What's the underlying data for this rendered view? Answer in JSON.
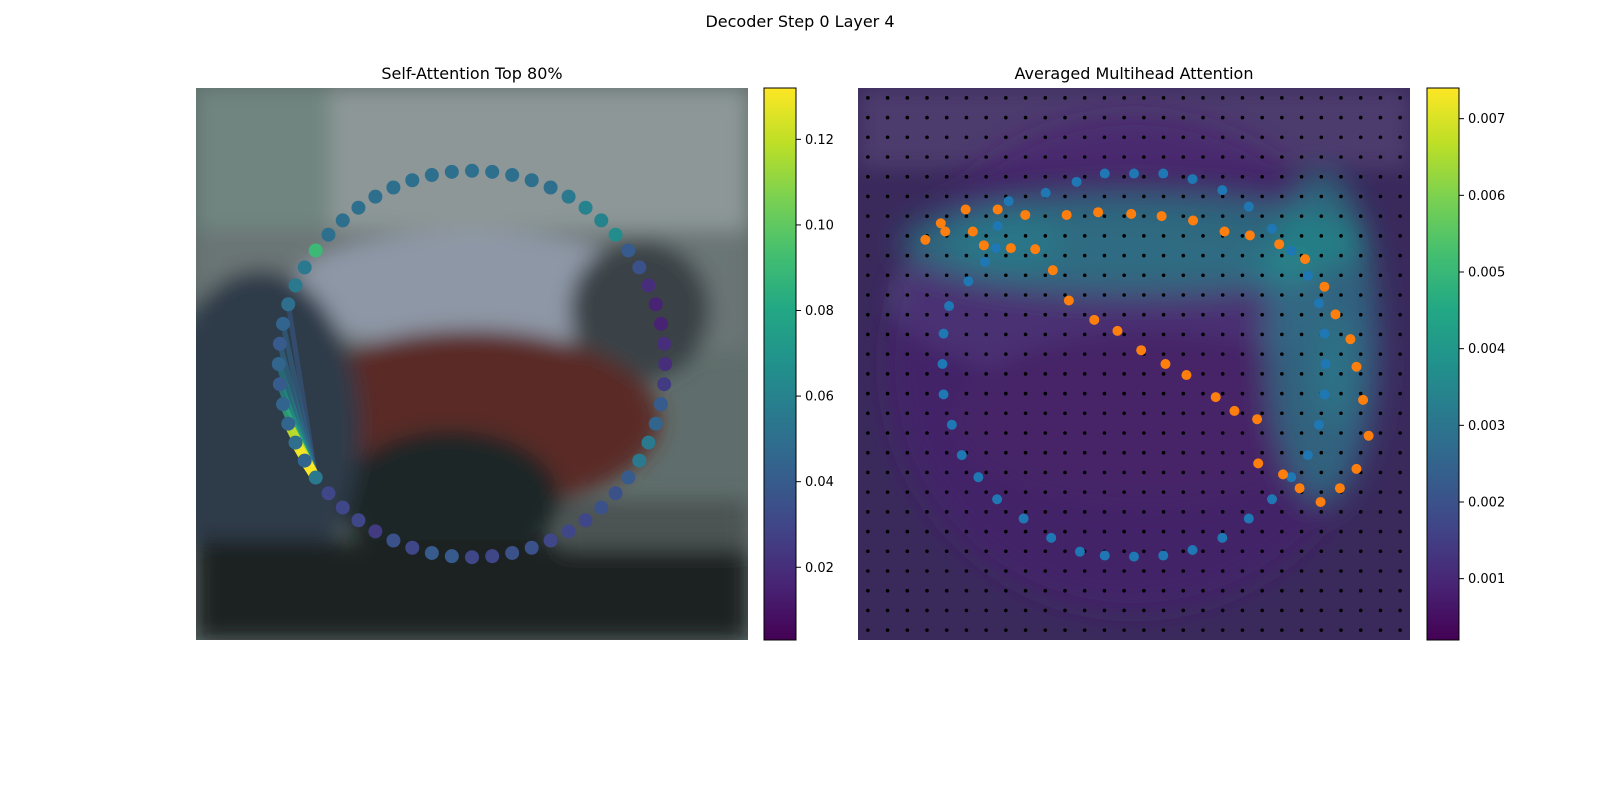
{
  "figure": {
    "suptitle": "Decoder Step 0 Layer 4"
  },
  "chart_data": [
    {
      "type": "scatter",
      "title": "Self-Attention Top 80%",
      "colormap": "viridis",
      "colorbar": {
        "vmin": 0.003,
        "vmax": 0.132,
        "ticks": [
          "0.02",
          "0.04",
          "0.06",
          "0.08",
          "0.10",
          "0.12"
        ],
        "tick_values": [
          0.02,
          0.04,
          0.06,
          0.08,
          0.1,
          0.12
        ]
      },
      "ring_center": [
        0.5,
        0.5
      ],
      "ring_radius": 0.35,
      "query_point": 39,
      "points": [
        {
          "angle": 90,
          "attention": 0.05
        },
        {
          "angle": 84,
          "attention": 0.05
        },
        {
          "angle": 78,
          "attention": 0.05
        },
        {
          "angle": 72,
          "attention": 0.05
        },
        {
          "angle": 66,
          "attention": 0.05
        },
        {
          "angle": 60,
          "attention": 0.055
        },
        {
          "angle": 54,
          "attention": 0.06
        },
        {
          "angle": 48,
          "attention": 0.06
        },
        {
          "angle": 42,
          "attention": 0.065
        },
        {
          "angle": 36,
          "attention": 0.04
        },
        {
          "angle": 30,
          "attention": 0.035
        },
        {
          "angle": 24,
          "attention": 0.02
        },
        {
          "angle": 18,
          "attention": 0.015
        },
        {
          "angle": 12,
          "attention": 0.015
        },
        {
          "angle": 6,
          "attention": 0.02
        },
        {
          "angle": 0,
          "attention": 0.02
        },
        {
          "angle": -6,
          "attention": 0.025
        },
        {
          "angle": -12,
          "attention": 0.04
        },
        {
          "angle": -18,
          "attention": 0.045
        },
        {
          "angle": -24,
          "attention": 0.055
        },
        {
          "angle": -30,
          "attention": 0.055
        },
        {
          "angle": -36,
          "attention": 0.04
        },
        {
          "angle": -42,
          "attention": 0.035
        },
        {
          "angle": -48,
          "attention": 0.035
        },
        {
          "angle": -54,
          "attention": 0.03
        },
        {
          "angle": -60,
          "attention": 0.03
        },
        {
          "angle": -66,
          "attention": 0.03
        },
        {
          "angle": -72,
          "attention": 0.035
        },
        {
          "angle": -78,
          "attention": 0.035
        },
        {
          "angle": -84,
          "attention": 0.03
        },
        {
          "angle": -90,
          "attention": 0.03
        },
        {
          "angle": -96,
          "attention": 0.04
        },
        {
          "angle": -102,
          "attention": 0.04
        },
        {
          "angle": -108,
          "attention": 0.03
        },
        {
          "angle": -114,
          "attention": 0.035
        },
        {
          "angle": -120,
          "attention": 0.025
        },
        {
          "angle": -126,
          "attention": 0.03
        },
        {
          "angle": -132,
          "attention": 0.03
        },
        {
          "angle": -138,
          "attention": 0.03
        },
        {
          "angle": -144,
          "attention": 0.055
        },
        {
          "angle": -150,
          "attention": 0.045
        },
        {
          "angle": -156,
          "attention": 0.05
        },
        {
          "angle": -162,
          "attention": 0.045
        },
        {
          "angle": -168,
          "attention": 0.045
        },
        {
          "angle": -174,
          "attention": 0.04
        },
        {
          "angle": 180,
          "attention": 0.045
        },
        {
          "angle": 174,
          "attention": 0.04
        },
        {
          "angle": 168,
          "attention": 0.045
        },
        {
          "angle": 162,
          "attention": 0.05
        },
        {
          "angle": 156,
          "attention": 0.055
        },
        {
          "angle": 150,
          "attention": 0.055
        },
        {
          "angle": 144,
          "attention": 0.09
        },
        {
          "angle": 138,
          "attention": 0.05
        },
        {
          "angle": 132,
          "attention": 0.05
        },
        {
          "angle": 126,
          "attention": 0.05
        },
        {
          "angle": 120,
          "attention": 0.05
        },
        {
          "angle": 114,
          "attention": 0.05
        },
        {
          "angle": 108,
          "attention": 0.05
        },
        {
          "angle": 102,
          "attention": 0.05
        },
        {
          "angle": 96,
          "attention": 0.05
        }
      ],
      "lines": [
        {
          "to": 40,
          "attention": 0.132
        },
        {
          "to": 41,
          "attention": 0.13
        },
        {
          "to": 42,
          "attention": 0.12
        },
        {
          "to": 43,
          "attention": 0.085
        },
        {
          "to": 44,
          "attention": 0.07
        },
        {
          "to": 45,
          "attention": 0.06
        },
        {
          "to": 46,
          "attention": 0.05
        },
        {
          "to": 47,
          "attention": 0.045
        },
        {
          "to": 48,
          "attention": 0.04
        }
      ]
    },
    {
      "type": "heatmap",
      "title": "Averaged Multihead Attention",
      "colormap": "viridis",
      "colorbar": {
        "vmin": 0.0002,
        "vmax": 0.0074,
        "ticks": [
          "0.001",
          "0.002",
          "0.003",
          "0.004",
          "0.005",
          "0.006",
          "0.007"
        ],
        "tick_values": [
          0.001,
          0.002,
          0.003,
          0.004,
          0.005,
          0.006,
          0.007
        ]
      },
      "grid_size": 28,
      "grid_dots": true,
      "hotspots": [
        {
          "cx": 0.5,
          "cy": 0.28,
          "rx": 0.42,
          "ry": 0.09,
          "value": 0.0038
        },
        {
          "cx": 0.84,
          "cy": 0.45,
          "rx": 0.1,
          "ry": 0.3,
          "value": 0.0036
        },
        {
          "cx": 0.27,
          "cy": 0.28,
          "rx": 0.1,
          "ry": 0.06,
          "value": 0.0025
        },
        {
          "cx": 0.76,
          "cy": 0.33,
          "rx": 0.06,
          "ry": 0.04,
          "value": 0.0025
        },
        {
          "cx": 0.86,
          "cy": 0.51,
          "rx": 0.04,
          "ry": 0.1,
          "value": 0.0028
        },
        {
          "cx": 0.5,
          "cy": 0.5,
          "rx": 0.45,
          "ry": 0.45,
          "value": 0.0008
        }
      ],
      "series": [
        {
          "name": "blue",
          "color": "#1f77b4",
          "points": [
            [
              0.5,
              0.155
            ],
            [
              0.447,
              0.155
            ],
            [
              0.396,
              0.17
            ],
            [
              0.34,
              0.19
            ],
            [
              0.273,
              0.205
            ],
            [
              0.253,
              0.25
            ],
            [
              0.25,
              0.29
            ],
            [
              0.23,
              0.315
            ],
            [
              0.2,
              0.35
            ],
            [
              0.165,
              0.395
            ],
            [
              0.155,
              0.445
            ],
            [
              0.153,
              0.5
            ],
            [
              0.155,
              0.555
            ],
            [
              0.17,
              0.61
            ],
            [
              0.188,
              0.665
            ],
            [
              0.218,
              0.705
            ],
            [
              0.252,
              0.745
            ],
            [
              0.3,
              0.78
            ],
            [
              0.35,
              0.815
            ],
            [
              0.402,
              0.84
            ],
            [
              0.447,
              0.847
            ],
            [
              0.5,
              0.849
            ],
            [
              0.553,
              0.847
            ],
            [
              0.606,
              0.837
            ],
            [
              0.66,
              0.815
            ],
            [
              0.708,
              0.78
            ],
            [
              0.75,
              0.745
            ],
            [
              0.785,
              0.705
            ],
            [
              0.815,
              0.665
            ],
            [
              0.835,
              0.61
            ],
            [
              0.845,
              0.555
            ],
            [
              0.847,
              0.5
            ],
            [
              0.845,
              0.445
            ],
            [
              0.835,
              0.39
            ],
            [
              0.815,
              0.34
            ],
            [
              0.785,
              0.295
            ],
            [
              0.75,
              0.255
            ],
            [
              0.708,
              0.215
            ],
            [
              0.66,
              0.185
            ],
            [
              0.606,
              0.165
            ],
            [
              0.553,
              0.155
            ]
          ]
        },
        {
          "name": "orange",
          "color": "#ff7f0e",
          "points": [
            [
              0.122,
              0.275
            ],
            [
              0.15,
              0.245
            ],
            [
              0.195,
              0.22
            ],
            [
              0.253,
              0.22
            ],
            [
              0.303,
              0.23
            ],
            [
              0.378,
              0.23
            ],
            [
              0.435,
              0.225
            ],
            [
              0.495,
              0.228
            ],
            [
              0.55,
              0.232
            ],
            [
              0.607,
              0.24
            ],
            [
              0.664,
              0.26
            ],
            [
              0.71,
              0.267
            ],
            [
              0.763,
              0.283
            ],
            [
              0.81,
              0.31
            ],
            [
              0.845,
              0.36
            ],
            [
              0.865,
              0.41
            ],
            [
              0.892,
              0.455
            ],
            [
              0.903,
              0.505
            ],
            [
              0.915,
              0.565
            ],
            [
              0.925,
              0.63
            ],
            [
              0.903,
              0.69
            ],
            [
              0.873,
              0.725
            ],
            [
              0.838,
              0.75
            ],
            [
              0.8,
              0.725
            ],
            [
              0.77,
              0.7
            ],
            [
              0.725,
              0.68
            ],
            [
              0.723,
              0.6
            ],
            [
              0.682,
              0.585
            ],
            [
              0.648,
              0.56
            ],
            [
              0.595,
              0.52
            ],
            [
              0.557,
              0.5
            ],
            [
              0.513,
              0.475
            ],
            [
              0.47,
              0.44
            ],
            [
              0.428,
              0.42
            ],
            [
              0.382,
              0.385
            ],
            [
              0.353,
              0.33
            ],
            [
              0.321,
              0.292
            ],
            [
              0.277,
              0.29
            ],
            [
              0.228,
              0.285
            ],
            [
              0.208,
              0.26
            ],
            [
              0.158,
              0.26
            ]
          ]
        }
      ]
    }
  ]
}
